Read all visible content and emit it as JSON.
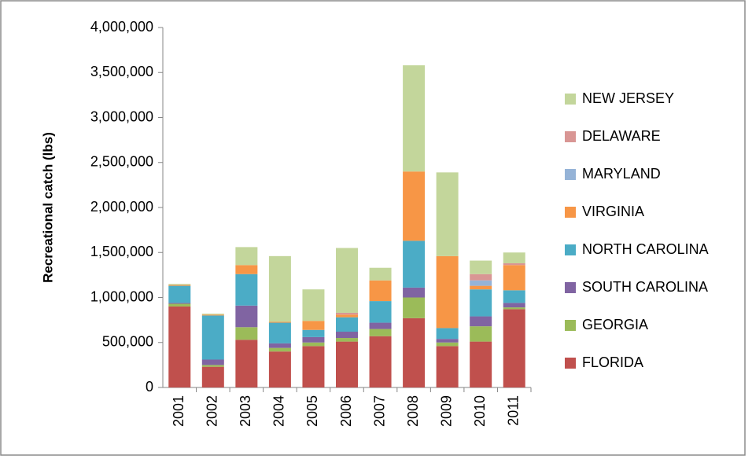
{
  "chart_data": {
    "type": "stacked_bar",
    "y_label": "Recreational catch (lbs)",
    "categories": [
      "2001",
      "2002",
      "2003",
      "2004",
      "2005",
      "2006",
      "2007",
      "2008",
      "2009",
      "2010",
      "2011"
    ],
    "series": [
      {
        "name": "FLORIDA",
        "color": "#c0504d",
        "values": [
          900000,
          230000,
          530000,
          400000,
          460000,
          510000,
          570000,
          770000,
          460000,
          510000,
          870000
        ]
      },
      {
        "name": "GEORGIA",
        "color": "#9bbb59",
        "values": [
          30000,
          20000,
          140000,
          40000,
          40000,
          40000,
          80000,
          230000,
          40000,
          170000,
          20000
        ]
      },
      {
        "name": "SOUTH CAROLINA",
        "color": "#8064a2",
        "values": [
          10000,
          60000,
          240000,
          50000,
          60000,
          70000,
          70000,
          110000,
          40000,
          110000,
          50000
        ]
      },
      {
        "name": "NORTH CAROLINA",
        "color": "#4bacc6",
        "values": [
          190000,
          490000,
          350000,
          230000,
          80000,
          160000,
          240000,
          520000,
          120000,
          300000,
          140000
        ]
      },
      {
        "name": "VIRGINIA",
        "color": "#f79646",
        "values": [
          10000,
          10000,
          100000,
          10000,
          100000,
          30000,
          230000,
          770000,
          800000,
          40000,
          280000
        ]
      },
      {
        "name": "MARYLAND",
        "color": "#95b3d7",
        "values": [
          0,
          0,
          0,
          0,
          0,
          0,
          0,
          0,
          0,
          60000,
          0
        ]
      },
      {
        "name": "DELAWARE",
        "color": "#d99694",
        "values": [
          0,
          0,
          0,
          0,
          0,
          20000,
          0,
          0,
          0,
          70000,
          20000
        ]
      },
      {
        "name": "NEW JERSEY",
        "color": "#c3d69b",
        "values": [
          10000,
          10000,
          200000,
          730000,
          350000,
          720000,
          140000,
          1180000,
          930000,
          150000,
          120000
        ]
      }
    ],
    "ylim": [
      0,
      4000000
    ],
    "yticks": [
      0,
      {
        "value": 500000,
        "label": "500,000"
      },
      {
        "value": 1000000,
        "label": "1,000,000"
      },
      {
        "value": 1500000,
        "label": "1,500,000"
      },
      {
        "value": 2000000,
        "label": "2,000,000"
      },
      {
        "value": 2500000,
        "label": "2,500,000"
      },
      {
        "value": 3000000,
        "label": "3,000,000"
      },
      {
        "value": 3500000,
        "label": "3,500,000"
      },
      {
        "value": 4000000,
        "label": "4,000,000"
      }
    ],
    "grid": false,
    "legend": "right"
  }
}
